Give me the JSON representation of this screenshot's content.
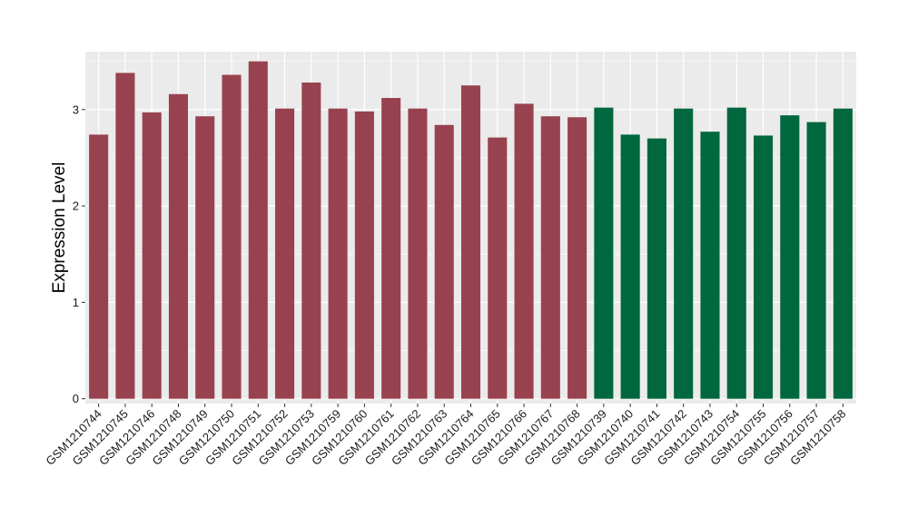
{
  "chart_data": {
    "type": "bar",
    "title": "",
    "xlabel": "",
    "ylabel": "Expression Level",
    "ylim": [
      -0.05,
      3.6
    ],
    "yticks": [
      0,
      1,
      2,
      3
    ],
    "ytick_labels": [
      "0",
      "1",
      "2",
      "3"
    ],
    "grid": true,
    "legend": "none",
    "categories": [
      "GSM1210744",
      "GSM1210745",
      "GSM1210746",
      "GSM1210748",
      "GSM1210749",
      "GSM1210750",
      "GSM1210751",
      "GSM1210752",
      "GSM1210753",
      "GSM1210759",
      "GSM1210760",
      "GSM1210761",
      "GSM1210762",
      "GSM1210763",
      "GSM1210764",
      "GSM1210765",
      "GSM1210766",
      "GSM1210767",
      "GSM1210768",
      "GSM1210739",
      "GSM1210740",
      "GSM1210741",
      "GSM1210742",
      "GSM1210743",
      "GSM1210754",
      "GSM1210755",
      "GSM1210756",
      "GSM1210757",
      "GSM1210758"
    ],
    "values": [
      2.74,
      3.38,
      2.97,
      3.16,
      2.93,
      3.36,
      3.5,
      3.01,
      3.28,
      3.01,
      2.98,
      3.12,
      3.01,
      2.84,
      3.25,
      2.71,
      3.06,
      2.93,
      2.92,
      3.02,
      2.74,
      2.7,
      3.01,
      2.77,
      3.02,
      2.73,
      2.94,
      2.87,
      3.01
    ],
    "bar_groups": [
      0,
      0,
      0,
      0,
      0,
      0,
      0,
      0,
      0,
      0,
      0,
      0,
      0,
      0,
      0,
      0,
      0,
      0,
      0,
      1,
      1,
      1,
      1,
      1,
      1,
      1,
      1,
      1,
      1
    ],
    "group_colors": [
      "#99424f",
      "#00673f"
    ]
  },
  "style": {
    "panel_background": "#ebebeb",
    "grid_color": "#ffffff"
  }
}
